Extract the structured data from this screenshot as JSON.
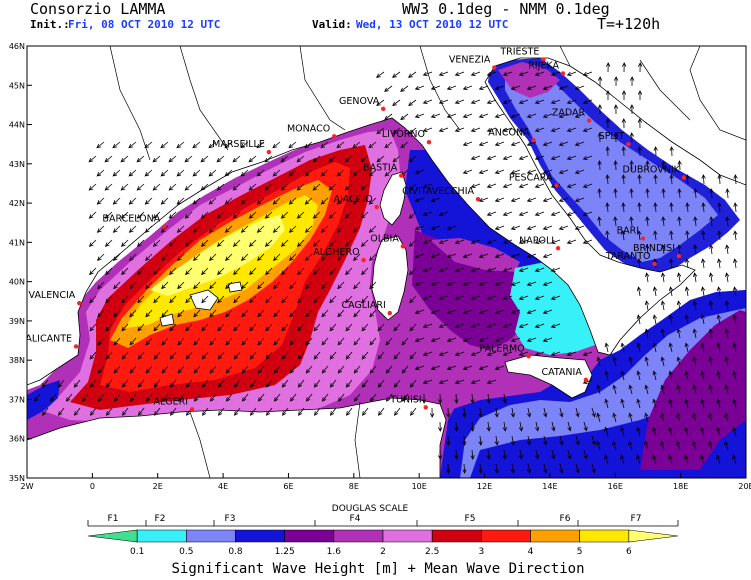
{
  "header": {
    "org": "Consorzio LAMMA",
    "model": "WW3 0.1deg - NMM 0.1deg",
    "init_label": "Init.:",
    "init_value": "Fri, 08 OCT 2010   12 UTC",
    "valid_label": "Valid:",
    "valid_value": "Wed, 13 OCT 2010   12 UTC",
    "lead": "T=+120h"
  },
  "map": {
    "lat_ticks": [
      "35N",
      "36N",
      "37N",
      "38N",
      "39N",
      "40N",
      "41N",
      "42N",
      "43N",
      "44N",
      "45N",
      "46N"
    ],
    "lon_ticks": [
      "2W",
      "0",
      "2E",
      "4E",
      "6E",
      "8E",
      "10E",
      "12E",
      "14E",
      "16E",
      "18E",
      "20E"
    ],
    "cities": [
      {
        "name": "TRIESTE",
        "lon": 13.8,
        "lat": 45.65
      },
      {
        "name": "VENEZIA",
        "lon": 12.3,
        "lat": 45.45
      },
      {
        "name": "RIJEKA",
        "lon": 14.4,
        "lat": 45.3
      },
      {
        "name": "GENOVA",
        "lon": 8.9,
        "lat": 44.4
      },
      {
        "name": "ZADAR",
        "lon": 15.2,
        "lat": 44.1
      },
      {
        "name": "MONACO",
        "lon": 7.4,
        "lat": 43.7
      },
      {
        "name": "MARSEILLE",
        "lon": 5.4,
        "lat": 43.3
      },
      {
        "name": "LIVORNO",
        "lon": 10.3,
        "lat": 43.55
      },
      {
        "name": "SPLIT",
        "lon": 16.4,
        "lat": 43.5
      },
      {
        "name": "ANCONA",
        "lon": 13.5,
        "lat": 43.6
      },
      {
        "name": "DUBROVNIK",
        "lon": 18.1,
        "lat": 42.65
      },
      {
        "name": "BASTIA",
        "lon": 9.45,
        "lat": 42.7
      },
      {
        "name": "PESCARA",
        "lon": 14.2,
        "lat": 42.45
      },
      {
        "name": "AJACCIO",
        "lon": 8.7,
        "lat": 41.9
      },
      {
        "name": "CIVITAVECCHIA",
        "lon": 11.8,
        "lat": 42.1
      },
      {
        "name": "BARCELONA",
        "lon": 2.2,
        "lat": 41.4
      },
      {
        "name": "OLBIA",
        "lon": 9.5,
        "lat": 40.9
      },
      {
        "name": "NAPOLI",
        "lon": 14.25,
        "lat": 40.85
      },
      {
        "name": "BARI",
        "lon": 16.85,
        "lat": 41.1
      },
      {
        "name": "ALGHERO",
        "lon": 8.3,
        "lat": 40.55
      },
      {
        "name": "BRINDISI",
        "lon": 17.95,
        "lat": 40.65
      },
      {
        "name": "TARANTO",
        "lon": 17.2,
        "lat": 40.45
      },
      {
        "name": "VALENCIA",
        "lon": -0.4,
        "lat": 39.45
      },
      {
        "name": "CAGLIARI",
        "lon": 9.1,
        "lat": 39.2
      },
      {
        "name": "ALICANTE",
        "lon": -0.5,
        "lat": 38.35
      },
      {
        "name": "PALERMO",
        "lon": 13.35,
        "lat": 38.1
      },
      {
        "name": "CATANIA",
        "lon": 15.1,
        "lat": 37.5
      },
      {
        "name": "TUNISI",
        "lon": 10.2,
        "lat": 36.8
      },
      {
        "name": "ALGERI",
        "lon": 3.05,
        "lat": 36.75
      }
    ]
  },
  "colorbar": {
    "scale_title": "DOUGLAS SCALE",
    "force_labels": [
      "F1",
      "F2",
      "F3",
      "F4",
      "F5",
      "F6",
      "F7"
    ],
    "levels": [
      "0.1",
      "0.5",
      "0.8",
      "1.25",
      "1.6",
      "2",
      "2.5",
      "3",
      "4",
      "5",
      "6"
    ],
    "colors": [
      "#40e090",
      "#38f0f8",
      "#7d84f8",
      "#1414d8",
      "#7a0096",
      "#b030b8",
      "#e070e0",
      "#d00010",
      "#ff1a10",
      "#ffa000",
      "#ffe800",
      "#ffff70"
    ],
    "title": "Significant Wave Height [m] + Mean Wave Direction"
  },
  "colors": {
    "land": "#ffffff",
    "border": "#000000",
    "city_marker": "#ff2020"
  }
}
